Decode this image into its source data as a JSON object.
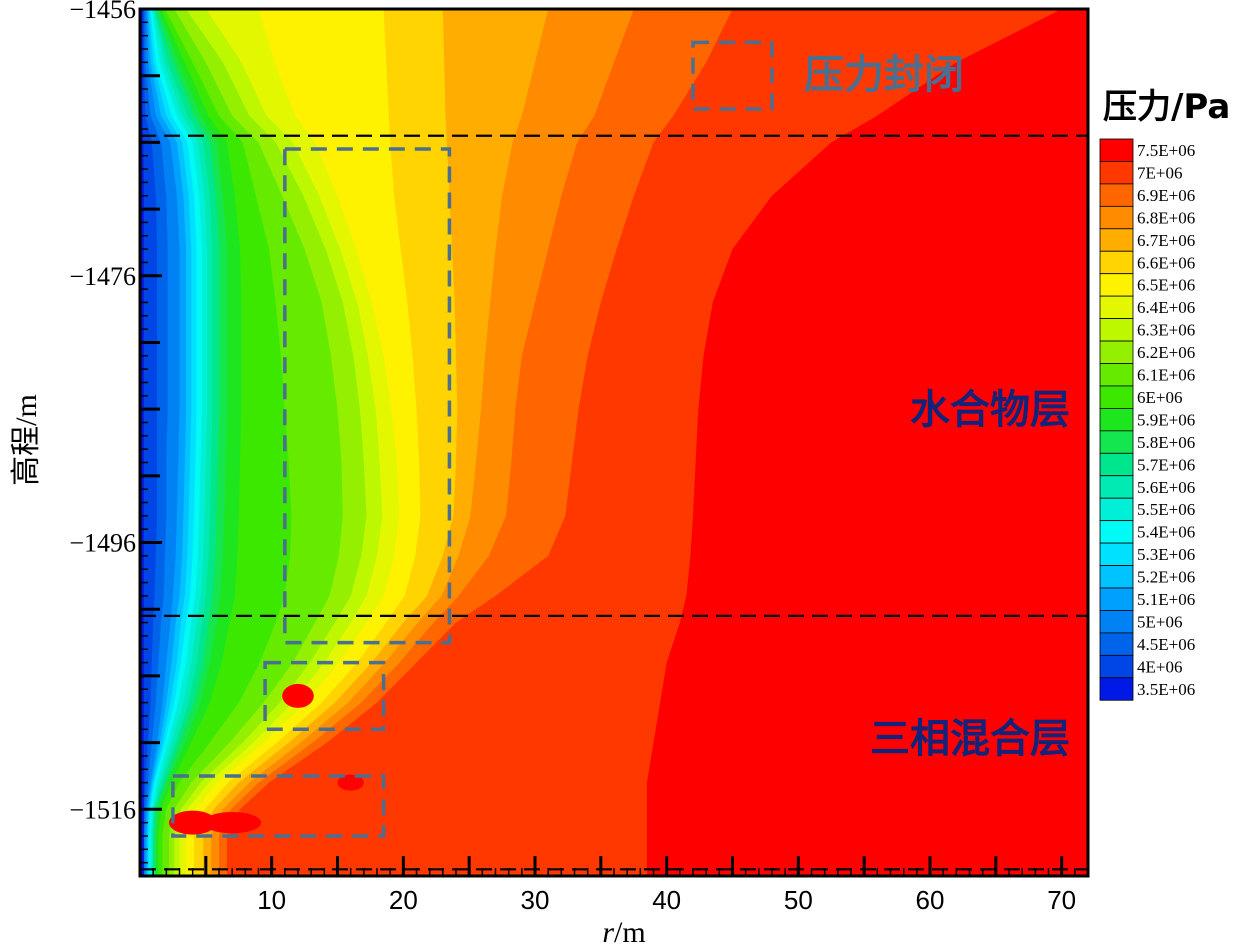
{
  "chart_data": {
    "type": "heatmap",
    "title": "",
    "xlabel": "r/m",
    "xlabel_italic_part": "r",
    "xlabel_rest": "/m",
    "ylabel": "高程/m",
    "xlim": [
      0,
      72
    ],
    "ylim": [
      -1521,
      -1456
    ],
    "x_ticks": [
      "10",
      "20",
      "30",
      "40",
      "50",
      "60",
      "70"
    ],
    "x_tick_values": [
      10,
      20,
      30,
      40,
      50,
      60,
      70
    ],
    "y_ticks": [
      "−1456",
      "−1476",
      "−1496",
      "−1516"
    ],
    "y_tick_values": [
      -1456,
      -1476,
      -1496,
      -1516
    ],
    "legend_title": "压力/Pa",
    "legend_placement": "right",
    "levels": [
      {
        "label": "7.5E+06",
        "value": 7500000,
        "color": "#ff0000"
      },
      {
        "label": "7E+06",
        "value": 7000000,
        "color": "#ff3800"
      },
      {
        "label": "6.9E+06",
        "value": 6900000,
        "color": "#ff6600"
      },
      {
        "label": "6.8E+06",
        "value": 6800000,
        "color": "#ff8c00"
      },
      {
        "label": "6.7E+06",
        "value": 6700000,
        "color": "#ffad00"
      },
      {
        "label": "6.6E+06",
        "value": 6600000,
        "color": "#ffd400"
      },
      {
        "label": "6.5E+06",
        "value": 6500000,
        "color": "#fff200"
      },
      {
        "label": "6.4E+06",
        "value": 6400000,
        "color": "#e3f700"
      },
      {
        "label": "6.3E+06",
        "value": 6300000,
        "color": "#bdf700"
      },
      {
        "label": "6.2E+06",
        "value": 6200000,
        "color": "#94f000"
      },
      {
        "label": "6.1E+06",
        "value": 6100000,
        "color": "#66eb00"
      },
      {
        "label": "6E+06",
        "value": 6000000,
        "color": "#3de800"
      },
      {
        "label": "5.9E+06",
        "value": 5900000,
        "color": "#1ee61e"
      },
      {
        "label": "5.8E+06",
        "value": 5800000,
        "color": "#14e650"
      },
      {
        "label": "5.7E+06",
        "value": 5700000,
        "color": "#00e68c"
      },
      {
        "label": "5.6E+06",
        "value": 5600000,
        "color": "#00ebb4"
      },
      {
        "label": "5.5E+06",
        "value": 5500000,
        "color": "#00f0d7"
      },
      {
        "label": "5.4E+06",
        "value": 5400000,
        "color": "#00faf5"
      },
      {
        "label": "5.3E+06",
        "value": 5300000,
        "color": "#00e1ff"
      },
      {
        "label": "5.2E+06",
        "value": 5200000,
        "color": "#00c3ff"
      },
      {
        "label": "5.1E+06",
        "value": 5100000,
        "color": "#00a0ff"
      },
      {
        "label": "5E+06",
        "value": 5000000,
        "color": "#0082f5"
      },
      {
        "label": "4.5E+06",
        "value": 4500000,
        "color": "#0064eb"
      },
      {
        "label": "4E+06",
        "value": 4000000,
        "color": "#0046e6"
      },
      {
        "label": "3.5E+06",
        "value": 3500000,
        "color": "#0019e6"
      }
    ],
    "layer_boundaries_elevation": [
      -1465.5,
      -1501.5,
      -1520.5
    ],
    "annotations": {
      "seal_label": "压力封闭",
      "hydrate_layer_label": "水合物层",
      "three_phase_label": "三相混合层"
    },
    "dashed_regions": [
      {
        "name": "seal",
        "x": [
          42,
          48
        ],
        "y": [
          -1458.5,
          -1463.5
        ]
      },
      {
        "name": "hydrate-front",
        "x": [
          11,
          23.5
        ],
        "y": [
          -1466.5,
          -1503.5
        ]
      },
      {
        "name": "mid-front",
        "x": [
          9.5,
          18.5
        ],
        "y": [
          -1505,
          -1510
        ]
      },
      {
        "name": "bottom-front",
        "x": [
          2.5,
          18.5
        ],
        "y": [
          -1513.5,
          -1518
        ]
      }
    ]
  }
}
